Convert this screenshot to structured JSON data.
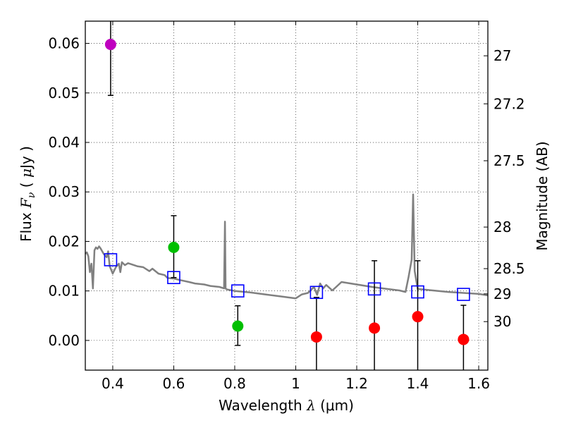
{
  "chart_data": {
    "type": "scatter",
    "xlabel": "Wavelength  λ (μm)",
    "ylabel": "Flux  F_ν  ( μJy )",
    "ylabel_parts": {
      "prefix": "Flux  ",
      "sym": "F",
      "sub": "ν",
      "mid": "  ( ",
      "mu": "μ",
      "unit": "Jy )"
    },
    "xlabel_parts": {
      "prefix": "Wavelength  ",
      "sym": "λ",
      "unit": " (μm)"
    },
    "y2label": "Magnitude (AB)",
    "xlim": [
      0.31,
      1.63
    ],
    "ylim": [
      -0.006,
      0.0645
    ],
    "x_ticks": [
      {
        "value": 0.4,
        "label": "0.4"
      },
      {
        "value": 0.6,
        "label": "0.6"
      },
      {
        "value": 0.8,
        "label": "0.8"
      },
      {
        "value": 1.0,
        "label": "1"
      },
      {
        "value": 1.2,
        "label": "1.2"
      },
      {
        "value": 1.4,
        "label": "1.4"
      },
      {
        "value": 1.6,
        "label": "1.6"
      }
    ],
    "y_ticks": [
      {
        "value": 0.0,
        "label": "0.00"
      },
      {
        "value": 0.01,
        "label": "0.01"
      },
      {
        "value": 0.02,
        "label": "0.02"
      },
      {
        "value": 0.03,
        "label": "0.03"
      },
      {
        "value": 0.04,
        "label": "0.04"
      },
      {
        "value": 0.05,
        "label": "0.05"
      },
      {
        "value": 0.06,
        "label": "0.06"
      }
    ],
    "y2_ticks": [
      {
        "label": "27",
        "flux": 0.0575
      },
      {
        "label": "27.2",
        "flux": 0.0478
      },
      {
        "label": "27.5",
        "flux": 0.0363
      },
      {
        "label": "28",
        "flux": 0.0229
      },
      {
        "label": "28.5",
        "flux": 0.0145
      },
      {
        "label": "29",
        "flux": 0.0094
      },
      {
        "label": "30",
        "flux": 0.0038
      }
    ],
    "grid": true,
    "sed_model": {
      "color": "#808080",
      "x": [
        0.31,
        0.315,
        0.32,
        0.325,
        0.33,
        0.335,
        0.34,
        0.345,
        0.35,
        0.355,
        0.36,
        0.37,
        0.38,
        0.385,
        0.39,
        0.4,
        0.41,
        0.42,
        0.425,
        0.43,
        0.44,
        0.45,
        0.46,
        0.48,
        0.5,
        0.52,
        0.53,
        0.55,
        0.57,
        0.58,
        0.6,
        0.62,
        0.65,
        0.67,
        0.7,
        0.72,
        0.75,
        0.765,
        0.768,
        0.77,
        0.772,
        0.775,
        0.8,
        0.85,
        0.9,
        0.95,
        1.0,
        1.02,
        1.04,
        1.06,
        1.07,
        1.08,
        1.09,
        1.1,
        1.12,
        1.15,
        1.2,
        1.25,
        1.3,
        1.34,
        1.36,
        1.37,
        1.38,
        1.385,
        1.39,
        1.4,
        1.45,
        1.5,
        1.55,
        1.6,
        1.63
      ],
      "y": [
        0.0175,
        0.0178,
        0.017,
        0.0138,
        0.0155,
        0.0105,
        0.0182,
        0.0188,
        0.0185,
        0.019,
        0.0186,
        0.0175,
        0.0168,
        0.018,
        0.015,
        0.0135,
        0.0148,
        0.0155,
        0.0138,
        0.0158,
        0.0152,
        0.0156,
        0.0154,
        0.015,
        0.0148,
        0.014,
        0.0145,
        0.0135,
        0.0132,
        0.0126,
        0.0125,
        0.0122,
        0.0118,
        0.0115,
        0.0113,
        0.011,
        0.0108,
        0.0105,
        0.024,
        0.0105,
        0.0104,
        0.0103,
        0.01,
        0.0097,
        0.0093,
        0.0089,
        0.0085,
        0.0093,
        0.0096,
        0.0108,
        0.0092,
        0.0115,
        0.0105,
        0.0112,
        0.0101,
        0.0118,
        0.0113,
        0.0108,
        0.0104,
        0.0101,
        0.0098,
        0.0128,
        0.0163,
        0.0295,
        0.014,
        0.0104,
        0.0101,
        0.0098,
        0.0096,
        0.0094,
        0.0091
      ]
    },
    "model_photometry": {
      "marker": "open-square",
      "color": "#0000ff",
      "x": [
        0.393,
        0.6,
        0.81,
        1.068,
        1.258,
        1.4,
        1.55
      ],
      "y": [
        0.0163,
        0.0127,
        0.01,
        0.0097,
        0.0104,
        0.0098,
        0.0093
      ]
    },
    "observed": [
      {
        "x": 0.393,
        "y": 0.0598,
        "err_low": 0.0495,
        "err_high": 0.065,
        "color": "#bf00bf"
      },
      {
        "x": 0.6,
        "y": 0.0188,
        "err_low": 0.0127,
        "err_high": 0.0252,
        "color": "#00bf00"
      },
      {
        "x": 0.81,
        "y": 0.0029,
        "err_low": -0.001,
        "err_high": 0.007,
        "color": "#00bf00"
      },
      {
        "x": 1.068,
        "y": 0.0007,
        "err_low": -0.0065,
        "err_high": 0.0087,
        "color": "#ff0000"
      },
      {
        "x": 1.258,
        "y": 0.0025,
        "err_low": -0.0065,
        "err_high": 0.0161,
        "color": "#ff0000"
      },
      {
        "x": 1.4,
        "y": 0.0048,
        "err_low": -0.0065,
        "err_high": 0.0161,
        "color": "#ff0000"
      },
      {
        "x": 1.55,
        "y": 0.0002,
        "err_low": -0.0065,
        "err_high": 0.0071,
        "color": "#ff0000"
      }
    ]
  }
}
